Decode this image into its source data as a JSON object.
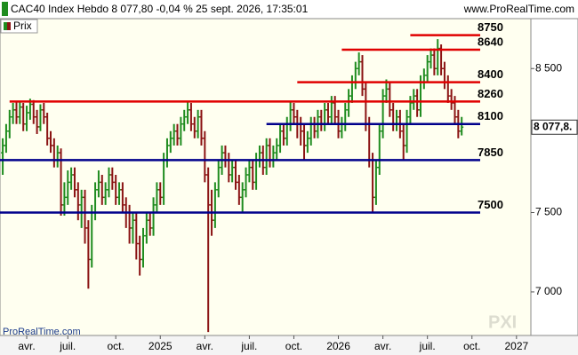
{
  "chart_data": {
    "type": "ohlc",
    "title": "CAC40 Index Hebdo 8 077,80 -0,04 % 25 sept. 2026, 17:35:01",
    "source": "www.ProRealTime.com",
    "watermark": "ProRealTime.com",
    "logo": "PXI",
    "legend": "Prix",
    "log_scale": true,
    "up_color": "#1f8c1f",
    "down_color": "#8b1414",
    "ylim": [
      6740,
      8870
    ],
    "yticks": [
      {
        "value": 7000,
        "label": "7 000"
      },
      {
        "value": 7500,
        "label": "7 500"
      },
      {
        "value": 8500,
        "label": "8 500"
      }
    ],
    "last_price": {
      "value": 8077.8,
      "label": "8 077,8."
    },
    "xlim": [
      -0.8,
      154.2
    ],
    "xticks": [
      {
        "value": 7,
        "label": "avr."
      },
      {
        "value": 19,
        "label": "juil."
      },
      {
        "value": 33,
        "label": "oct."
      },
      {
        "value": 46,
        "label": "2025"
      },
      {
        "value": 59,
        "label": "avr."
      },
      {
        "value": 72,
        "label": "juil."
      },
      {
        "value": 85,
        "label": "oct."
      },
      {
        "value": 98,
        "label": "2026"
      },
      {
        "value": 111,
        "label": "avr."
      },
      {
        "value": 124,
        "label": "juil."
      },
      {
        "value": 137,
        "label": "oct."
      },
      {
        "value": 150,
        "label": "2027"
      }
    ],
    "levels": [
      {
        "value": 8750,
        "color": "#e00000",
        "from": 119
      },
      {
        "value": 8640,
        "color": "#e00000",
        "from": 99
      },
      {
        "value": 8400,
        "color": "#e00000",
        "from": 86
      },
      {
        "value": 8260,
        "color": "#e00000",
        "from": 2
      },
      {
        "value": 8100,
        "color": "#00008b",
        "from": 77
      },
      {
        "value": 7850,
        "color": "#00008b",
        "from": -0.8
      },
      {
        "value": 7500,
        "color": "#00008b",
        "from": -0.8
      }
    ],
    "open": [
      7900,
      7950,
      8050,
      8150,
      8200,
      8150,
      8220,
      8100,
      8180,
      8240,
      8150,
      8080,
      8200,
      8150,
      8000,
      7950,
      7850,
      7900,
      7550,
      7600,
      7700,
      7750,
      7650,
      7550,
      7600,
      7400,
      7200,
      7500,
      7650,
      7700,
      7600,
      7650,
      7750,
      7700,
      7600,
      7650,
      7550,
      7500,
      7400,
      7450,
      7300,
      7200,
      7350,
      7450,
      7400,
      7550,
      7650,
      7600,
      7850,
      7950,
      8000,
      8050,
      8000,
      8100,
      8150,
      8200,
      8100,
      8050,
      8150,
      8000,
      7750,
      7550,
      7450,
      7650,
      7800,
      7900,
      7850,
      7750,
      7800,
      7700,
      7600,
      7650,
      7750,
      7800,
      7700,
      7850,
      7900,
      7800,
      7950,
      7850,
      7900,
      7950,
      8050,
      8000,
      8100,
      8200,
      8150,
      8100,
      8050,
      7950,
      8000,
      8100,
      8050,
      8150,
      8100,
      8200,
      8150,
      8250,
      8150,
      8050,
      8100,
      8200,
      8300,
      8400,
      8500,
      8550,
      8350,
      8100,
      7850,
      7600,
      7800,
      8050,
      8300,
      8350,
      8200,
      8100,
      8150,
      8050,
      7950,
      8150,
      8250,
      8300,
      8200,
      8400,
      8450,
      8550,
      8600,
      8500,
      8650,
      8500,
      8400,
      8300,
      8250,
      8150,
      8050
    ],
    "high": [
      8000,
      8100,
      8200,
      8250,
      8260,
      8260,
      8250,
      8230,
      8280,
      8270,
      8200,
      8240,
      8250,
      8180,
      8050,
      8000,
      7950,
      7930,
      7700,
      7780,
      7800,
      7800,
      7700,
      7650,
      7650,
      7450,
      7550,
      7700,
      7780,
      7750,
      7700,
      7800,
      7800,
      7750,
      7700,
      7700,
      7600,
      7550,
      7500,
      7500,
      7350,
      7400,
      7500,
      7500,
      7600,
      7700,
      7700,
      7900,
      8000,
      8050,
      8100,
      8100,
      8150,
      8200,
      8260,
      8250,
      8150,
      8200,
      8200,
      8050,
      7800,
      7650,
      7700,
      7850,
      7950,
      7950,
      7900,
      7850,
      7850,
      7750,
      7700,
      7800,
      7850,
      7850,
      7900,
      7950,
      7950,
      8000,
      8000,
      7950,
      8000,
      8100,
      8100,
      8150,
      8260,
      8250,
      8200,
      8150,
      8100,
      8050,
      8150,
      8150,
      8200,
      8200,
      8250,
      8250,
      8300,
      8300,
      8200,
      8150,
      8250,
      8350,
      8450,
      8550,
      8620,
      8600,
      8400,
      8150,
      7900,
      7850,
      8100,
      8350,
      8420,
      8400,
      8250,
      8200,
      8200,
      8100,
      8200,
      8300,
      8350,
      8350,
      8450,
      8500,
      8600,
      8650,
      8650,
      8720,
      8680,
      8550,
      8450,
      8350,
      8300,
      8200,
      8150
    ],
    "low": [
      7750,
      7900,
      8000,
      8100,
      8100,
      8100,
      8050,
      8050,
      8130,
      8100,
      8030,
      8050,
      8100,
      7950,
      7900,
      7800,
      7800,
      7480,
      7480,
      7550,
      7650,
      7600,
      7450,
      7400,
      7300,
      7020,
      7150,
      7450,
      7600,
      7550,
      7550,
      7600,
      7650,
      7550,
      7550,
      7500,
      7400,
      7300,
      7300,
      7200,
      7100,
      7150,
      7300,
      7350,
      7350,
      7500,
      7550,
      7550,
      7800,
      7900,
      7950,
      7950,
      7950,
      8050,
      8100,
      8050,
      8000,
      8000,
      7950,
      7700,
      6760,
      7350,
      7400,
      7600,
      7750,
      7800,
      7700,
      7700,
      7650,
      7550,
      7500,
      7600,
      7700,
      7650,
      7650,
      7800,
      7750,
      7750,
      7800,
      7800,
      7850,
      7900,
      7950,
      7950,
      8050,
      8100,
      8000,
      7950,
      7850,
      7900,
      7950,
      8000,
      8000,
      8050,
      8050,
      8100,
      8100,
      8100,
      8000,
      8000,
      8050,
      8150,
      8250,
      8350,
      8450,
      8300,
      8050,
      7800,
      7500,
      7550,
      7750,
      8000,
      8250,
      8150,
      8050,
      8050,
      8000,
      7850,
      7900,
      8100,
      8200,
      8150,
      8150,
      8350,
      8400,
      8500,
      8450,
      8450,
      8450,
      8350,
      8250,
      8200,
      8100,
      8000,
      8020
    ],
    "close": [
      7950,
      8050,
      8150,
      8200,
      8150,
      8220,
      8100,
      8180,
      8240,
      8150,
      8080,
      8200,
      8150,
      8000,
      7950,
      7850,
      7900,
      7550,
      7600,
      7700,
      7750,
      7650,
      7550,
      7600,
      7400,
      7200,
      7500,
      7650,
      7700,
      7600,
      7650,
      7750,
      7700,
      7600,
      7650,
      7550,
      7500,
      7400,
      7450,
      7300,
      7200,
      7350,
      7450,
      7400,
      7550,
      7650,
      7600,
      7850,
      7950,
      8000,
      8050,
      8000,
      8100,
      8150,
      8200,
      8100,
      8050,
      8150,
      8000,
      7750,
      7550,
      7450,
      7650,
      7800,
      7900,
      7850,
      7750,
      7800,
      7700,
      7600,
      7650,
      7750,
      7800,
      7700,
      7850,
      7900,
      7800,
      7950,
      7850,
      7900,
      7950,
      8050,
      8000,
      8100,
      8200,
      8150,
      8100,
      8050,
      7950,
      8000,
      8100,
      8050,
      8150,
      8100,
      8200,
      8150,
      8250,
      8150,
      8050,
      8100,
      8200,
      8300,
      8400,
      8500,
      8550,
      8350,
      8100,
      7850,
      7600,
      7800,
      8050,
      8300,
      8350,
      8200,
      8100,
      8150,
      8050,
      7950,
      8150,
      8250,
      8300,
      8200,
      8400,
      8450,
      8550,
      8600,
      8500,
      8650,
      8500,
      8400,
      8300,
      8250,
      8150,
      8050,
      8077.8
    ]
  }
}
